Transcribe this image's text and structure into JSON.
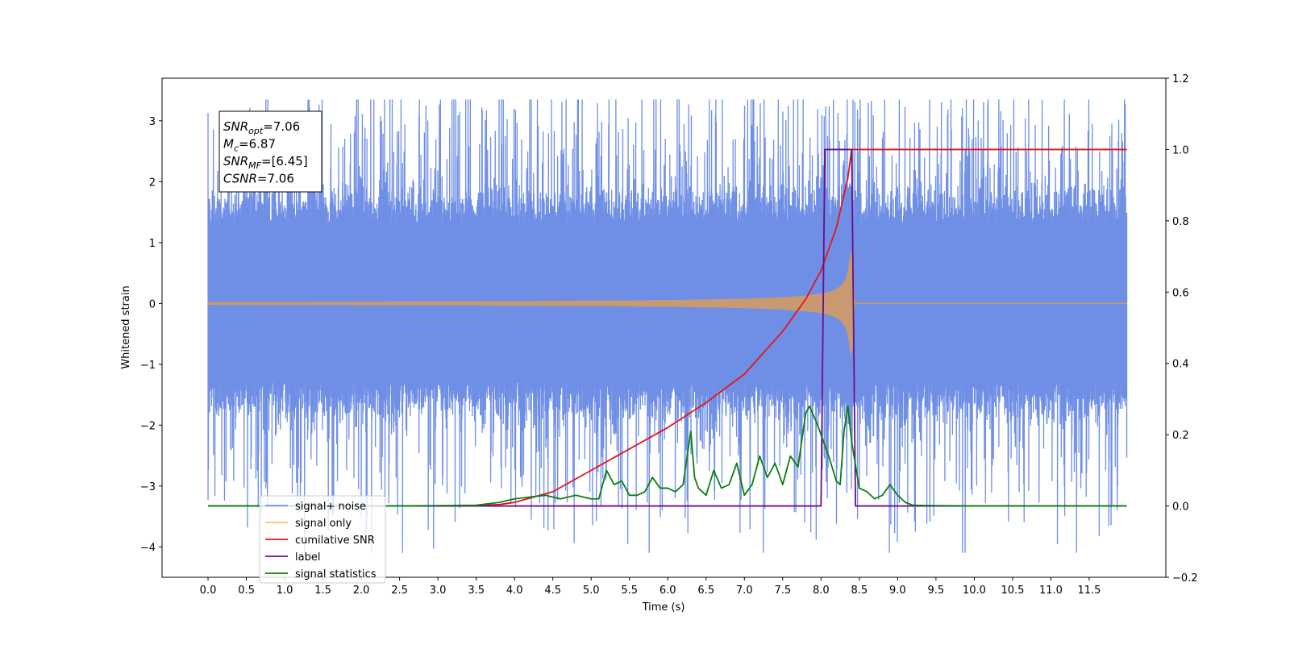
{
  "chart_data": {
    "type": "line",
    "title": "",
    "xlabel": "Time (s)",
    "ylabel": "Whitened strain",
    "xlim": [
      -0.6,
      12.5
    ],
    "ylim": [
      -4.5,
      3.7
    ],
    "y2lim": [
      -0.2,
      1.2
    ],
    "xticks": [
      "0.0",
      "0.5",
      "1.0",
      "1.5",
      "2.0",
      "2.5",
      "3.0",
      "3.5",
      "4.0",
      "4.5",
      "5.0",
      "5.5",
      "6.0",
      "6.5",
      "7.0",
      "7.5",
      "8.0",
      "8.5",
      "9.0",
      "9.5",
      "10.0",
      "10.5",
      "11.0",
      "11.5"
    ],
    "yticks": [
      "3",
      "2",
      "1",
      "0",
      "−1",
      "−2",
      "−3",
      "−4"
    ],
    "y2ticks": [
      "1.2",
      "1.0",
      "0.8",
      "0.6",
      "0.4",
      "0.2",
      "0.0",
      "−0.2"
    ],
    "grid": false,
    "legend_position": "lower-left",
    "annotation": [
      {
        "base": "SNR",
        "sub": "opt",
        "rest": "=7.06"
      },
      {
        "base": "M",
        "sub": "c",
        "rest": "=6.87"
      },
      {
        "base": "SNR",
        "sub": "MF",
        "rest": "=[6.45]"
      },
      {
        "base": "CSNR",
        "sub": "",
        "rest": "=7.06"
      }
    ],
    "series": [
      {
        "name": "signal+ noise",
        "color": "#6f8fe6",
        "axis": "left",
        "kind": "noise",
        "x_range": [
          0.0,
          11.99
        ],
        "amplitude_sigma": 1.0,
        "max": 3.35,
        "min": -4.1
      },
      {
        "name": "signal only",
        "color": "#ffbf5f",
        "axis": "left",
        "kind": "chirp",
        "merger_time": 8.4,
        "peak_amplitude": 0.85
      },
      {
        "name": "cumilative SNR",
        "color": "#e8131a",
        "axis": "right",
        "x": [
          0.0,
          3.0,
          3.5,
          3.8,
          4.0,
          4.5,
          5.0,
          5.5,
          6.0,
          6.5,
          7.0,
          7.5,
          7.8,
          8.0,
          8.2,
          8.35,
          8.4,
          8.42,
          11.99
        ],
        "y": [
          0.0,
          0.0,
          0.001,
          0.004,
          0.01,
          0.04,
          0.1,
          0.16,
          0.22,
          0.29,
          0.37,
          0.49,
          0.58,
          0.66,
          0.78,
          0.92,
          1.0,
          1.0,
          1.0
        ]
      },
      {
        "name": "label",
        "color": "#6a0f82",
        "axis": "right",
        "x": [
          0.0,
          8.0,
          8.05,
          8.4,
          8.45,
          11.99
        ],
        "y": [
          0.0,
          0.0,
          1.0,
          1.0,
          0.0,
          0.0
        ]
      },
      {
        "name": "signal statistics",
        "color": "#0b7f0b",
        "axis": "right",
        "x": [
          0.0,
          2.5,
          3.0,
          3.5,
          3.8,
          4.0,
          4.2,
          4.4,
          4.6,
          4.8,
          5.0,
          5.1,
          5.2,
          5.3,
          5.4,
          5.5,
          5.6,
          5.7,
          5.8,
          5.9,
          6.0,
          6.1,
          6.2,
          6.3,
          6.35,
          6.4,
          6.5,
          6.6,
          6.7,
          6.8,
          6.9,
          7.0,
          7.1,
          7.2,
          7.3,
          7.4,
          7.5,
          7.6,
          7.7,
          7.8,
          7.85,
          7.95,
          8.0,
          8.1,
          8.2,
          8.25,
          8.3,
          8.35,
          8.4,
          8.5,
          8.6,
          8.7,
          8.8,
          8.9,
          9.0,
          9.1,
          9.2,
          9.5,
          10.0,
          11.0,
          11.99
        ],
        "y": [
          0.0,
          0.0,
          0.001,
          0.002,
          0.01,
          0.02,
          0.025,
          0.03,
          0.02,
          0.03,
          0.02,
          0.02,
          0.1,
          0.06,
          0.07,
          0.03,
          0.03,
          0.04,
          0.08,
          0.05,
          0.05,
          0.04,
          0.06,
          0.21,
          0.08,
          0.05,
          0.03,
          0.1,
          0.05,
          0.06,
          0.12,
          0.03,
          0.06,
          0.14,
          0.08,
          0.12,
          0.06,
          0.14,
          0.11,
          0.26,
          0.28,
          0.23,
          0.2,
          0.14,
          0.07,
          0.06,
          0.21,
          0.28,
          0.18,
          0.05,
          0.04,
          0.02,
          0.03,
          0.06,
          0.03,
          0.01,
          0.002,
          0.001,
          0.0,
          0.0,
          0.0
        ]
      }
    ]
  }
}
